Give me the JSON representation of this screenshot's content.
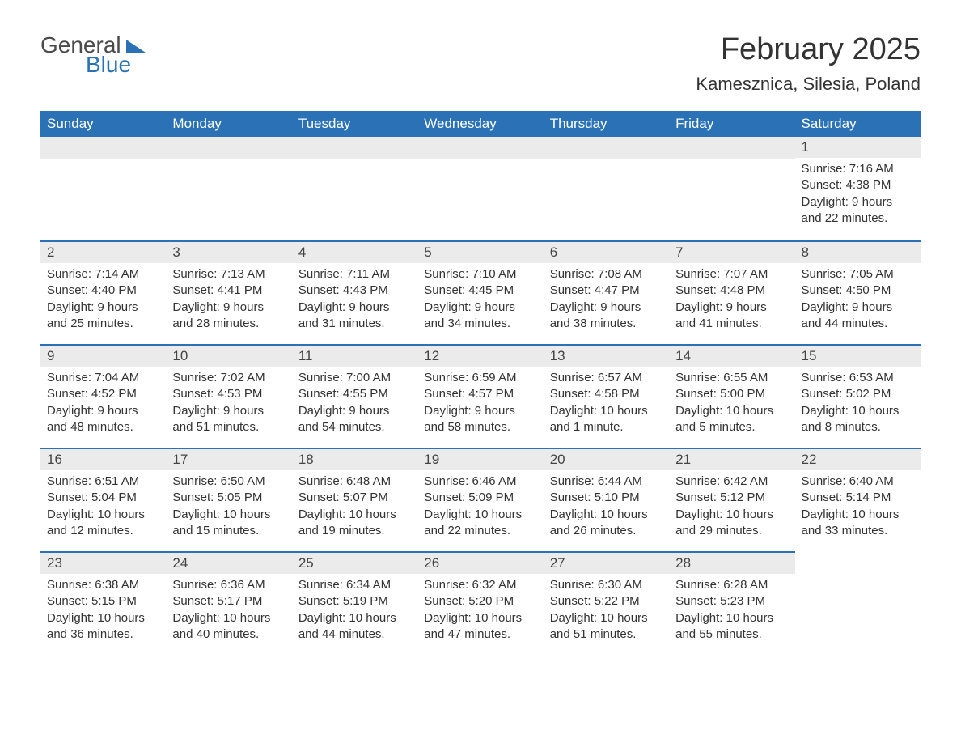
{
  "logo": {
    "text1": "General",
    "text2": "Blue"
  },
  "title": "February 2025",
  "location": "Kamesznica, Silesia, Poland",
  "brand_color": "#2a72b5",
  "header_bg": "#2a72b5",
  "header_text_color": "#ffffff",
  "daynum_bg": "#ebebeb",
  "body_bg": "#ffffff",
  "text_color": "#333333",
  "day_headers": [
    "Sunday",
    "Monday",
    "Tuesday",
    "Wednesday",
    "Thursday",
    "Friday",
    "Saturday"
  ],
  "weeks": [
    [
      null,
      null,
      null,
      null,
      null,
      null,
      {
        "day": "1",
        "sunrise": "Sunrise: 7:16 AM",
        "sunset": "Sunset: 4:38 PM",
        "daylight": "Daylight: 9 hours and 22 minutes."
      }
    ],
    [
      {
        "day": "2",
        "sunrise": "Sunrise: 7:14 AM",
        "sunset": "Sunset: 4:40 PM",
        "daylight": "Daylight: 9 hours and 25 minutes."
      },
      {
        "day": "3",
        "sunrise": "Sunrise: 7:13 AM",
        "sunset": "Sunset: 4:41 PM",
        "daylight": "Daylight: 9 hours and 28 minutes."
      },
      {
        "day": "4",
        "sunrise": "Sunrise: 7:11 AM",
        "sunset": "Sunset: 4:43 PM",
        "daylight": "Daylight: 9 hours and 31 minutes."
      },
      {
        "day": "5",
        "sunrise": "Sunrise: 7:10 AM",
        "sunset": "Sunset: 4:45 PM",
        "daylight": "Daylight: 9 hours and 34 minutes."
      },
      {
        "day": "6",
        "sunrise": "Sunrise: 7:08 AM",
        "sunset": "Sunset: 4:47 PM",
        "daylight": "Daylight: 9 hours and 38 minutes."
      },
      {
        "day": "7",
        "sunrise": "Sunrise: 7:07 AM",
        "sunset": "Sunset: 4:48 PM",
        "daylight": "Daylight: 9 hours and 41 minutes."
      },
      {
        "day": "8",
        "sunrise": "Sunrise: 7:05 AM",
        "sunset": "Sunset: 4:50 PM",
        "daylight": "Daylight: 9 hours and 44 minutes."
      }
    ],
    [
      {
        "day": "9",
        "sunrise": "Sunrise: 7:04 AM",
        "sunset": "Sunset: 4:52 PM",
        "daylight": "Daylight: 9 hours and 48 minutes."
      },
      {
        "day": "10",
        "sunrise": "Sunrise: 7:02 AM",
        "sunset": "Sunset: 4:53 PM",
        "daylight": "Daylight: 9 hours and 51 minutes."
      },
      {
        "day": "11",
        "sunrise": "Sunrise: 7:00 AM",
        "sunset": "Sunset: 4:55 PM",
        "daylight": "Daylight: 9 hours and 54 minutes."
      },
      {
        "day": "12",
        "sunrise": "Sunrise: 6:59 AM",
        "sunset": "Sunset: 4:57 PM",
        "daylight": "Daylight: 9 hours and 58 minutes."
      },
      {
        "day": "13",
        "sunrise": "Sunrise: 6:57 AM",
        "sunset": "Sunset: 4:58 PM",
        "daylight": "Daylight: 10 hours and 1 minute."
      },
      {
        "day": "14",
        "sunrise": "Sunrise: 6:55 AM",
        "sunset": "Sunset: 5:00 PM",
        "daylight": "Daylight: 10 hours and 5 minutes."
      },
      {
        "day": "15",
        "sunrise": "Sunrise: 6:53 AM",
        "sunset": "Sunset: 5:02 PM",
        "daylight": "Daylight: 10 hours and 8 minutes."
      }
    ],
    [
      {
        "day": "16",
        "sunrise": "Sunrise: 6:51 AM",
        "sunset": "Sunset: 5:04 PM",
        "daylight": "Daylight: 10 hours and 12 minutes."
      },
      {
        "day": "17",
        "sunrise": "Sunrise: 6:50 AM",
        "sunset": "Sunset: 5:05 PM",
        "daylight": "Daylight: 10 hours and 15 minutes."
      },
      {
        "day": "18",
        "sunrise": "Sunrise: 6:48 AM",
        "sunset": "Sunset: 5:07 PM",
        "daylight": "Daylight: 10 hours and 19 minutes."
      },
      {
        "day": "19",
        "sunrise": "Sunrise: 6:46 AM",
        "sunset": "Sunset: 5:09 PM",
        "daylight": "Daylight: 10 hours and 22 minutes."
      },
      {
        "day": "20",
        "sunrise": "Sunrise: 6:44 AM",
        "sunset": "Sunset: 5:10 PM",
        "daylight": "Daylight: 10 hours and 26 minutes."
      },
      {
        "day": "21",
        "sunrise": "Sunrise: 6:42 AM",
        "sunset": "Sunset: 5:12 PM",
        "daylight": "Daylight: 10 hours and 29 minutes."
      },
      {
        "day": "22",
        "sunrise": "Sunrise: 6:40 AM",
        "sunset": "Sunset: 5:14 PM",
        "daylight": "Daylight: 10 hours and 33 minutes."
      }
    ],
    [
      {
        "day": "23",
        "sunrise": "Sunrise: 6:38 AM",
        "sunset": "Sunset: 5:15 PM",
        "daylight": "Daylight: 10 hours and 36 minutes."
      },
      {
        "day": "24",
        "sunrise": "Sunrise: 6:36 AM",
        "sunset": "Sunset: 5:17 PM",
        "daylight": "Daylight: 10 hours and 40 minutes."
      },
      {
        "day": "25",
        "sunrise": "Sunrise: 6:34 AM",
        "sunset": "Sunset: 5:19 PM",
        "daylight": "Daylight: 10 hours and 44 minutes."
      },
      {
        "day": "26",
        "sunrise": "Sunrise: 6:32 AM",
        "sunset": "Sunset: 5:20 PM",
        "daylight": "Daylight: 10 hours and 47 minutes."
      },
      {
        "day": "27",
        "sunrise": "Sunrise: 6:30 AM",
        "sunset": "Sunset: 5:22 PM",
        "daylight": "Daylight: 10 hours and 51 minutes."
      },
      {
        "day": "28",
        "sunrise": "Sunrise: 6:28 AM",
        "sunset": "Sunset: 5:23 PM",
        "daylight": "Daylight: 10 hours and 55 minutes."
      },
      null
    ]
  ]
}
